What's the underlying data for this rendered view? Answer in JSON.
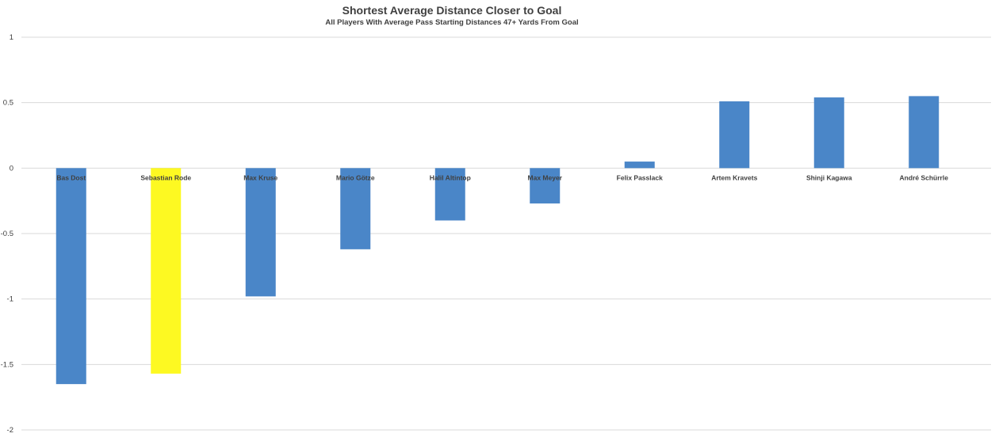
{
  "chart_data": {
    "type": "bar",
    "title": "Shortest Average Distance Closer to Goal",
    "subtitle": "All Players With Average Pass Starting Distances 47+ Yards From Goal",
    "xlabel": "",
    "ylabel": "",
    "categories": [
      "Bas Dost",
      "Sebastian Rode",
      "Max Kruse",
      "Mario Götze",
      "Halil Altintop",
      "Max Meyer",
      "Felix Passlack",
      "Artem Kravets",
      "Shinji Kagawa",
      "André Schürrle"
    ],
    "values": [
      -1.65,
      -1.57,
      -0.98,
      -0.62,
      -0.4,
      -0.27,
      0.05,
      0.51,
      0.54,
      0.55
    ],
    "bar_colors": [
      "#4a86c8",
      "#fdf922",
      "#4a86c8",
      "#4a86c8",
      "#4a86c8",
      "#4a86c8",
      "#4a86c8",
      "#4a86c8",
      "#4a86c8",
      "#4a86c8"
    ],
    "ylim": [
      -2,
      1
    ],
    "yticks": [
      1,
      0.5,
      0,
      -0.5,
      -1,
      -1.5,
      -2
    ],
    "ytick_labels": [
      "1",
      "0.5",
      "0",
      "-0.5",
      "-1",
      "-1.5",
      "-2"
    ],
    "grid": true,
    "legend": "none"
  }
}
